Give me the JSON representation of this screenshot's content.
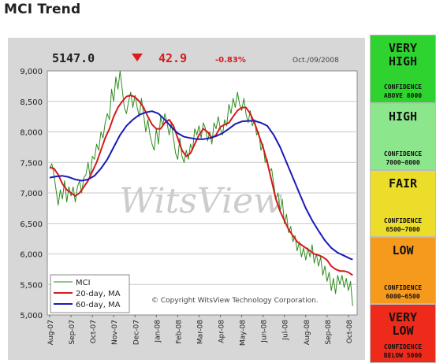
{
  "page": {
    "title": "MCI Trend"
  },
  "header": {
    "last_value": "5147.0",
    "change": "42.9",
    "change_pct": "-0.83%",
    "date": "Oct./09/2008",
    "change_direction": "down",
    "down_color": "#e01b1b"
  },
  "watermark": "WitsView",
  "copyright": "© Copyright WitsView Technology Corporation.",
  "legend": [
    {
      "label": "MCI",
      "color": "#2e8b1e"
    },
    {
      "label": "20-day, MA",
      "color": "#d41a1a"
    },
    {
      "label": "60-day, MA",
      "color": "#1a1ab8"
    }
  ],
  "confidence_panels": [
    {
      "title_lines": [
        "VERY",
        "HIGH"
      ],
      "sub_lines": [
        "CONFIDENCE",
        "ABOVE 8000"
      ],
      "color": "#2fd32f"
    },
    {
      "title_lines": [
        "HIGH"
      ],
      "sub_lines": [
        "CONFIDENCE",
        "7000~8000"
      ],
      "color": "#8ce68c"
    },
    {
      "title_lines": [
        "FAIR"
      ],
      "sub_lines": [
        "CONFIDENCE",
        "6500~7000"
      ],
      "color": "#ecdd2a"
    },
    {
      "title_lines": [
        "LOW"
      ],
      "sub_lines": [
        "CONFIDENCE",
        "6000~6500"
      ],
      "color": "#f59a1c"
    },
    {
      "title_lines": [
        "VERY",
        "LOW"
      ],
      "sub_lines": [
        "CONFIDENCE",
        "BELOW 5000"
      ],
      "color": "#ee2a1a"
    }
  ],
  "chart_data": {
    "type": "line",
    "title": "MCI Trend",
    "xlabel": "",
    "ylabel": "",
    "ylim": [
      5000,
      9000
    ],
    "yticks": [
      5000,
      5500,
      6000,
      6500,
      7000,
      7500,
      8000,
      8500,
      9000
    ],
    "ytick_labels": [
      "5,000",
      "5,500",
      "6,000",
      "6,500",
      "7,000",
      "7,500",
      "8,000",
      "8,500",
      "9,000"
    ],
    "x_categories": [
      "Aug-07",
      "Sep-07",
      "Oct-07",
      "Nov-07",
      "Dec-07",
      "Jan-08",
      "Feb-08",
      "Mar-08",
      "Apr-08",
      "May-08",
      "Jun-08",
      "Jul-08",
      "Aug-08",
      "Sep-08",
      "Oct-08"
    ],
    "x_range": [
      0,
      14.3
    ],
    "grid": "horizontal",
    "legend_position": "bottom-left",
    "series": [
      {
        "name": "MCI",
        "color": "#2e8b1e",
        "points": [
          [
            0,
            7400
          ],
          [
            0.1,
            7480
          ],
          [
            0.2,
            7300
          ],
          [
            0.3,
            7050
          ],
          [
            0.4,
            6800
          ],
          [
            0.5,
            7050
          ],
          [
            0.6,
            6900
          ],
          [
            0.7,
            7200
          ],
          [
            0.8,
            6850
          ],
          [
            0.9,
            7100
          ],
          [
            1.0,
            6950
          ],
          [
            1.1,
            7100
          ],
          [
            1.2,
            6850
          ],
          [
            1.3,
            7100
          ],
          [
            1.4,
            7200
          ],
          [
            1.5,
            7000
          ],
          [
            1.6,
            7250
          ],
          [
            1.7,
            7300
          ],
          [
            1.8,
            7500
          ],
          [
            1.9,
            7250
          ],
          [
            2.0,
            7600
          ],
          [
            2.1,
            7550
          ],
          [
            2.2,
            7800
          ],
          [
            2.3,
            7700
          ],
          [
            2.4,
            8000
          ],
          [
            2.5,
            7900
          ],
          [
            2.6,
            8150
          ],
          [
            2.7,
            8300
          ],
          [
            2.8,
            8200
          ],
          [
            2.9,
            8700
          ],
          [
            3.0,
            8500
          ],
          [
            3.1,
            8900
          ],
          [
            3.2,
            8700
          ],
          [
            3.3,
            9000
          ],
          [
            3.4,
            8700
          ],
          [
            3.5,
            8400
          ],
          [
            3.6,
            8300
          ],
          [
            3.7,
            8500
          ],
          [
            3.8,
            8650
          ],
          [
            3.9,
            8400
          ],
          [
            4.0,
            8600
          ],
          [
            4.1,
            8400
          ],
          [
            4.2,
            8250
          ],
          [
            4.3,
            8550
          ],
          [
            4.4,
            8300
          ],
          [
            4.5,
            8000
          ],
          [
            4.6,
            8200
          ],
          [
            4.7,
            7950
          ],
          [
            4.8,
            7800
          ],
          [
            4.9,
            7700
          ],
          [
            5.0,
            8050
          ],
          [
            5.1,
            7800
          ],
          [
            5.2,
            8250
          ],
          [
            5.3,
            8100
          ],
          [
            5.4,
            8300
          ],
          [
            5.5,
            8150
          ],
          [
            5.6,
            7950
          ],
          [
            5.7,
            8150
          ],
          [
            5.8,
            7900
          ],
          [
            5.9,
            7650
          ],
          [
            6.0,
            7550
          ],
          [
            6.1,
            7900
          ],
          [
            6.2,
            7600
          ],
          [
            6.3,
            7500
          ],
          [
            6.4,
            7700
          ],
          [
            6.5,
            7550
          ],
          [
            6.6,
            7800
          ],
          [
            6.7,
            7700
          ],
          [
            6.8,
            8050
          ],
          [
            6.9,
            7950
          ],
          [
            7.0,
            8100
          ],
          [
            7.1,
            7900
          ],
          [
            7.2,
            8150
          ],
          [
            7.3,
            8050
          ],
          [
            7.4,
            7850
          ],
          [
            7.5,
            8000
          ],
          [
            7.6,
            7800
          ],
          [
            7.7,
            8150
          ],
          [
            7.8,
            8050
          ],
          [
            7.9,
            8250
          ],
          [
            8.0,
            8050
          ],
          [
            8.1,
            7950
          ],
          [
            8.2,
            8200
          ],
          [
            8.3,
            8100
          ],
          [
            8.4,
            8450
          ],
          [
            8.5,
            8300
          ],
          [
            8.6,
            8550
          ],
          [
            8.7,
            8400
          ],
          [
            8.8,
            8650
          ],
          [
            8.9,
            8450
          ],
          [
            9.0,
            8350
          ],
          [
            9.1,
            8550
          ],
          [
            9.2,
            8300
          ],
          [
            9.3,
            8150
          ],
          [
            9.4,
            8350
          ],
          [
            9.5,
            8100
          ],
          [
            9.6,
            8200
          ],
          [
            9.7,
            7950
          ],
          [
            9.8,
            8000
          ],
          [
            9.9,
            7700
          ],
          [
            10.0,
            7800
          ],
          [
            10.1,
            7500
          ],
          [
            10.2,
            7550
          ],
          [
            10.3,
            7350
          ],
          [
            10.4,
            7400
          ],
          [
            10.5,
            7150
          ],
          [
            10.6,
            6900
          ],
          [
            10.7,
            7000
          ],
          [
            10.8,
            6700
          ],
          [
            10.9,
            6900
          ],
          [
            11.0,
            6500
          ],
          [
            11.1,
            6650
          ],
          [
            11.2,
            6350
          ],
          [
            11.3,
            6450
          ],
          [
            11.4,
            6200
          ],
          [
            11.5,
            6300
          ],
          [
            11.6,
            6050
          ],
          [
            11.7,
            6200
          ],
          [
            11.8,
            5950
          ],
          [
            11.9,
            6100
          ],
          [
            12.0,
            5900
          ],
          [
            12.1,
            6100
          ],
          [
            12.2,
            5950
          ],
          [
            12.3,
            6150
          ],
          [
            12.4,
            5850
          ],
          [
            12.5,
            6000
          ],
          [
            12.6,
            5800
          ],
          [
            12.7,
            5950
          ],
          [
            12.8,
            5650
          ],
          [
            12.9,
            5800
          ],
          [
            13.0,
            5550
          ],
          [
            13.1,
            5700
          ],
          [
            13.2,
            5400
          ],
          [
            13.3,
            5600
          ],
          [
            13.4,
            5350
          ],
          [
            13.5,
            5650
          ],
          [
            13.6,
            5500
          ],
          [
            13.7,
            5650
          ],
          [
            13.8,
            5450
          ],
          [
            13.9,
            5600
          ],
          [
            14.0,
            5400
          ],
          [
            14.1,
            5550
          ],
          [
            14.2,
            5147
          ]
        ]
      },
      {
        "name": "20-day, MA",
        "color": "#d41a1a",
        "points": [
          [
            0,
            7420
          ],
          [
            0.2,
            7400
          ],
          [
            0.4,
            7300
          ],
          [
            0.6,
            7150
          ],
          [
            0.8,
            7050
          ],
          [
            1.0,
            7000
          ],
          [
            1.2,
            6950
          ],
          [
            1.4,
            7000
          ],
          [
            1.6,
            7100
          ],
          [
            1.8,
            7200
          ],
          [
            2.0,
            7350
          ],
          [
            2.2,
            7500
          ],
          [
            2.4,
            7700
          ],
          [
            2.6,
            7900
          ],
          [
            2.8,
            8050
          ],
          [
            3.0,
            8250
          ],
          [
            3.2,
            8400
          ],
          [
            3.4,
            8500
          ],
          [
            3.6,
            8580
          ],
          [
            3.8,
            8600
          ],
          [
            4.0,
            8570
          ],
          [
            4.2,
            8500
          ],
          [
            4.4,
            8400
          ],
          [
            4.6,
            8250
          ],
          [
            4.8,
            8120
          ],
          [
            5.0,
            8050
          ],
          [
            5.2,
            8050
          ],
          [
            5.4,
            8150
          ],
          [
            5.6,
            8200
          ],
          [
            5.8,
            8100
          ],
          [
            6.0,
            7900
          ],
          [
            6.2,
            7700
          ],
          [
            6.4,
            7600
          ],
          [
            6.6,
            7650
          ],
          [
            6.8,
            7800
          ],
          [
            7.0,
            7950
          ],
          [
            7.2,
            8050
          ],
          [
            7.4,
            8000
          ],
          [
            7.6,
            7900
          ],
          [
            7.8,
            7950
          ],
          [
            8.0,
            8080
          ],
          [
            8.2,
            8120
          ],
          [
            8.4,
            8150
          ],
          [
            8.6,
            8250
          ],
          [
            8.8,
            8350
          ],
          [
            9.0,
            8400
          ],
          [
            9.2,
            8400
          ],
          [
            9.4,
            8300
          ],
          [
            9.6,
            8150
          ],
          [
            9.8,
            7950
          ],
          [
            10.0,
            7750
          ],
          [
            10.2,
            7500
          ],
          [
            10.4,
            7200
          ],
          [
            10.6,
            6900
          ],
          [
            10.8,
            6700
          ],
          [
            11.0,
            6550
          ],
          [
            11.2,
            6400
          ],
          [
            11.4,
            6300
          ],
          [
            11.6,
            6200
          ],
          [
            11.8,
            6150
          ],
          [
            12.0,
            6100
          ],
          [
            12.2,
            6050
          ],
          [
            12.4,
            6000
          ],
          [
            12.6,
            5980
          ],
          [
            12.8,
            5950
          ],
          [
            13.0,
            5900
          ],
          [
            13.2,
            5800
          ],
          [
            13.4,
            5750
          ],
          [
            13.6,
            5720
          ],
          [
            13.8,
            5720
          ],
          [
            14.0,
            5700
          ],
          [
            14.2,
            5650
          ]
        ]
      },
      {
        "name": "60-day, MA",
        "color": "#1a1ab8",
        "points": [
          [
            0,
            7250
          ],
          [
            0.3,
            7270
          ],
          [
            0.6,
            7280
          ],
          [
            0.9,
            7260
          ],
          [
            1.2,
            7220
          ],
          [
            1.5,
            7200
          ],
          [
            1.8,
            7220
          ],
          [
            2.1,
            7280
          ],
          [
            2.4,
            7400
          ],
          [
            2.7,
            7550
          ],
          [
            3.0,
            7750
          ],
          [
            3.3,
            7950
          ],
          [
            3.6,
            8100
          ],
          [
            3.9,
            8200
          ],
          [
            4.2,
            8280
          ],
          [
            4.5,
            8320
          ],
          [
            4.8,
            8340
          ],
          [
            5.1,
            8300
          ],
          [
            5.4,
            8200
          ],
          [
            5.7,
            8080
          ],
          [
            6.0,
            7980
          ],
          [
            6.3,
            7920
          ],
          [
            6.6,
            7900
          ],
          [
            6.9,
            7880
          ],
          [
            7.2,
            7880
          ],
          [
            7.5,
            7900
          ],
          [
            7.8,
            7930
          ],
          [
            8.1,
            7980
          ],
          [
            8.4,
            8050
          ],
          [
            8.7,
            8130
          ],
          [
            9.0,
            8170
          ],
          [
            9.3,
            8180
          ],
          [
            9.6,
            8180
          ],
          [
            9.9,
            8150
          ],
          [
            10.2,
            8100
          ],
          [
            10.5,
            7950
          ],
          [
            10.8,
            7750
          ],
          [
            11.1,
            7500
          ],
          [
            11.4,
            7250
          ],
          [
            11.7,
            7000
          ],
          [
            12.0,
            6750
          ],
          [
            12.3,
            6550
          ],
          [
            12.6,
            6380
          ],
          [
            12.9,
            6220
          ],
          [
            13.2,
            6100
          ],
          [
            13.5,
            6020
          ],
          [
            13.8,
            5970
          ],
          [
            14.1,
            5920
          ],
          [
            14.2,
            5910
          ]
        ]
      }
    ]
  }
}
